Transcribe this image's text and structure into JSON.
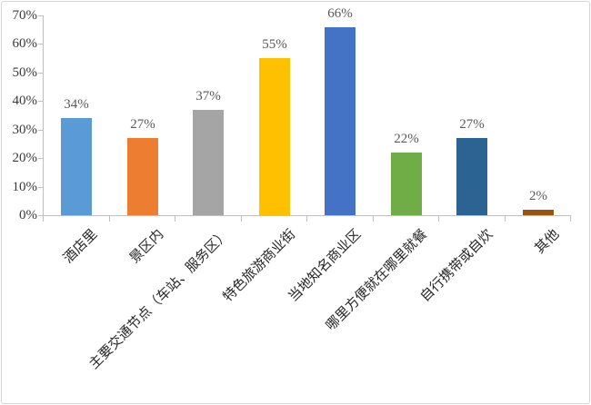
{
  "chart_data": {
    "type": "bar",
    "title": "",
    "xlabel": "",
    "ylabel": "",
    "categories": [
      "酒店里",
      "景区内",
      "主要交通节点（车站、服务区）",
      "特色旅游商业街",
      "当地知名商业区",
      "哪里方便就在哪里就餐",
      "自行携带或自炊",
      "其他"
    ],
    "values": [
      34,
      27,
      37,
      55,
      66,
      22,
      27,
      2
    ],
    "data_labels": [
      "34%",
      "27%",
      "37%",
      "55%",
      "66%",
      "22%",
      "27%",
      "2%"
    ],
    "bar_colors": [
      "#5B9BD5",
      "#ED7D31",
      "#A5A5A5",
      "#FFC000",
      "#4472C4",
      "#70AD47",
      "#2B6493",
      "#9A540E"
    ],
    "y_ticks": [
      "0%",
      "10%",
      "20%",
      "30%",
      "40%",
      "50%",
      "60%",
      "70%"
    ],
    "ylim": [
      0,
      70
    ],
    "grid": false,
    "legend": false,
    "colors": {
      "axis": "#BFBFBF",
      "y_tick_label": "#3A3A3A",
      "data_label": "#595959",
      "category_label": "#262626",
      "frame_border": "#D6D6D6",
      "background": "#FFFFFF"
    }
  }
}
